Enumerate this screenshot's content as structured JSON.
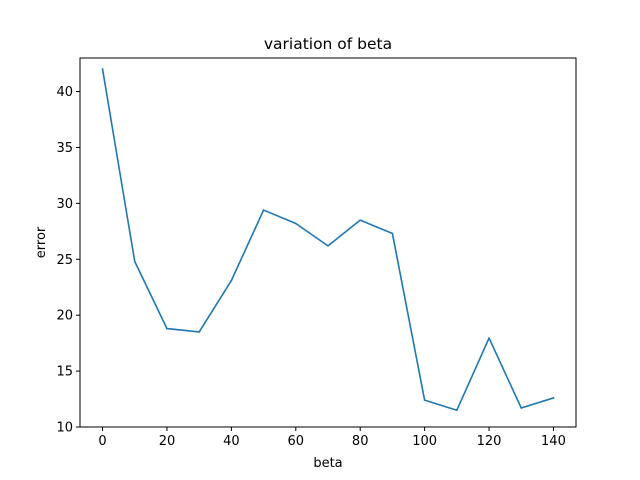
{
  "chart_data": {
    "type": "line",
    "title": "variation of beta",
    "xlabel": "beta",
    "ylabel": "error",
    "xlim": [
      -7,
      147
    ],
    "ylim": [
      10,
      43
    ],
    "xticks": [
      0,
      20,
      40,
      60,
      80,
      100,
      120,
      140
    ],
    "yticks": [
      10,
      15,
      20,
      25,
      30,
      35,
      40
    ],
    "grid": false,
    "color": "#1f77b4",
    "series": [
      {
        "x": [
          0,
          10,
          20,
          30,
          40,
          50,
          60,
          70,
          80,
          90,
          100,
          110,
          120,
          130,
          140
        ],
        "y": [
          42.0,
          24.8,
          18.8,
          18.5,
          23.1,
          29.4,
          28.2,
          26.2,
          28.5,
          27.3,
          12.4,
          11.5,
          17.95,
          11.7,
          12.6
        ]
      }
    ]
  }
}
